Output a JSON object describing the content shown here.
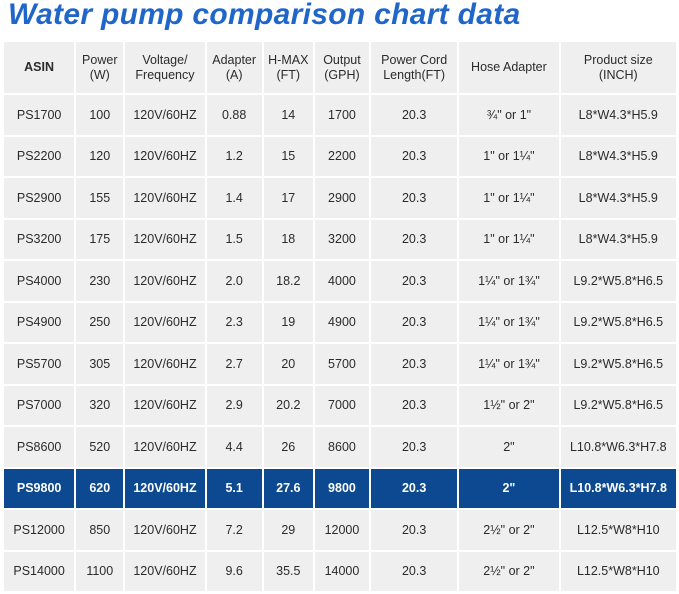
{
  "title": "Water pump comparison chart data",
  "table": {
    "headers": [
      {
        "line1": "ASIN",
        "line2": ""
      },
      {
        "line1": "Power",
        "line2": "(W)"
      },
      {
        "line1": "Voltage/",
        "line2": "Frequency"
      },
      {
        "line1": "Adapter",
        "line2": "(A)"
      },
      {
        "line1": "H-MAX",
        "line2": "(FT)"
      },
      {
        "line1": "Output",
        "line2": "(GPH)"
      },
      {
        "line1": "Power Cord",
        "line2": "Length(FT)"
      },
      {
        "line1": "Hose Adapter",
        "line2": ""
      },
      {
        "line1": "Product size",
        "line2": "(INCH)"
      }
    ],
    "highlight_row": 9,
    "highlight_color": "#0c4990",
    "header_color": "#1f66c8",
    "rows": [
      [
        "PS1700",
        "100",
        "120V/60HZ",
        "0.88",
        "14",
        "1700",
        "20.3",
        "¾\" or 1\"",
        "L8*W4.3*H5.9"
      ],
      [
        "PS2200",
        "120",
        "120V/60HZ",
        "1.2",
        "15",
        "2200",
        "20.3",
        "1\" or 1¼\"",
        "L8*W4.3*H5.9"
      ],
      [
        "PS2900",
        "155",
        "120V/60HZ",
        "1.4",
        "17",
        "2900",
        "20.3",
        "1\" or 1¼\"",
        "L8*W4.3*H5.9"
      ],
      [
        "PS3200",
        "175",
        "120V/60HZ",
        "1.5",
        "18",
        "3200",
        "20.3",
        "1\" or 1¼\"",
        "L8*W4.3*H5.9"
      ],
      [
        "PS4000",
        "230",
        "120V/60HZ",
        "2.0",
        "18.2",
        "4000",
        "20.3",
        "1¼\" or 1¾\"",
        "L9.2*W5.8*H6.5"
      ],
      [
        "PS4900",
        "250",
        "120V/60HZ",
        "2.3",
        "19",
        "4900",
        "20.3",
        "1¼\" or 1¾\"",
        "L9.2*W5.8*H6.5"
      ],
      [
        "PS5700",
        "305",
        "120V/60HZ",
        "2.7",
        "20",
        "5700",
        "20.3",
        "1¼\" or 1¾\"",
        "L9.2*W5.8*H6.5"
      ],
      [
        "PS7000",
        "320",
        "120V/60HZ",
        "2.9",
        "20.2",
        "7000",
        "20.3",
        "1½\" or 2\"",
        "L9.2*W5.8*H6.5"
      ],
      [
        "PS8600",
        "520",
        "120V/60HZ",
        "4.4",
        "26",
        "8600",
        "20.3",
        "2\"",
        "L10.8*W6.3*H7.8"
      ],
      [
        "PS9800",
        "620",
        "120V/60HZ",
        "5.1",
        "27.6",
        "9800",
        "20.3",
        "2\"",
        "L10.8*W6.3*H7.8"
      ],
      [
        "PS12000",
        "850",
        "120V/60HZ",
        "7.2",
        "29",
        "12000",
        "20.3",
        "2½\" or 2\"",
        "L12.5*W8*H10"
      ],
      [
        "PS14000",
        "1100",
        "120V/60HZ",
        "9.6",
        "35.5",
        "14000",
        "20.3",
        "2½\" or 2\"",
        "L12.5*W8*H10"
      ]
    ]
  }
}
